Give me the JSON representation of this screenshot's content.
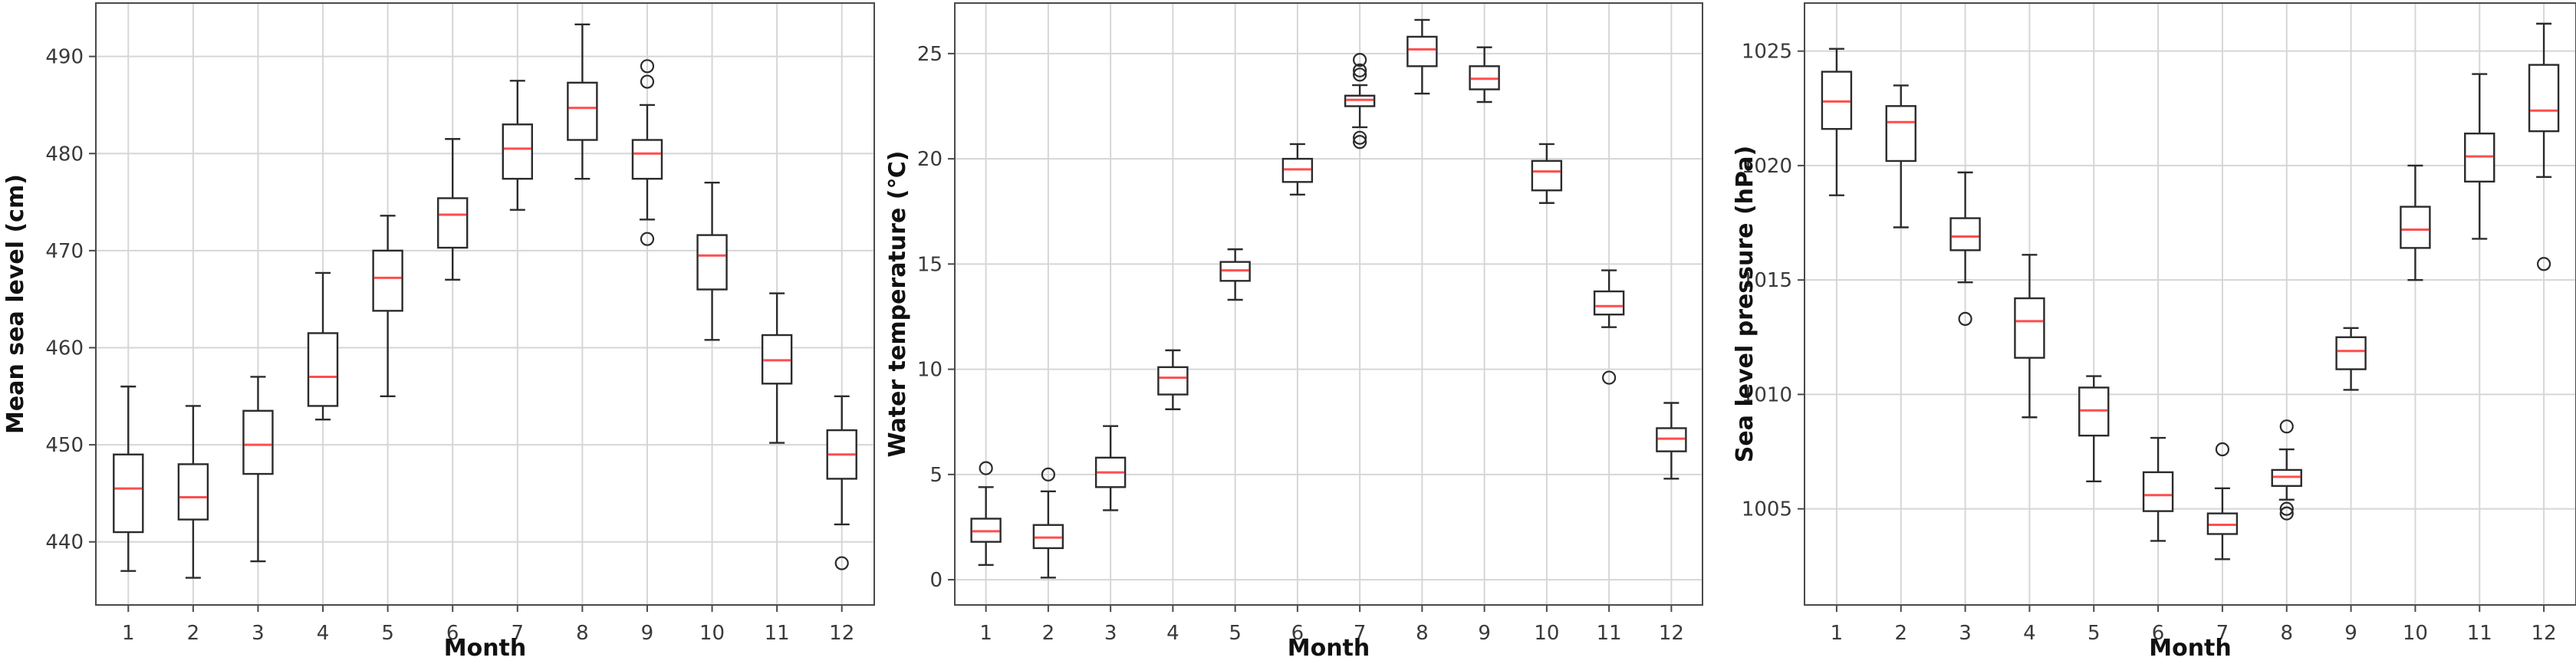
{
  "colors": {
    "median": "#ff4d4d",
    "box": "#2b2b2b",
    "grid": "#d6d6d6"
  },
  "chart_data": [
    {
      "type": "box",
      "xlabel": "Month",
      "ylabel": "Mean sea level (cm)",
      "ylim": [
        433.5,
        495.5
      ],
      "yticks": [
        440,
        450,
        460,
        470,
        480,
        490
      ],
      "grid": true,
      "categories": [
        "1",
        "2",
        "3",
        "4",
        "5",
        "6",
        "7",
        "8",
        "9",
        "10",
        "11",
        "12"
      ],
      "boxes": [
        {
          "whislo": 437.0,
          "q1": 441.0,
          "med": 445.5,
          "q3": 449.0,
          "whishi": 456.0,
          "fliers": []
        },
        {
          "whislo": 436.3,
          "q1": 442.3,
          "med": 444.6,
          "q3": 448.0,
          "whishi": 454.0,
          "fliers": []
        },
        {
          "whislo": 438.0,
          "q1": 447.0,
          "med": 450.0,
          "q3": 453.5,
          "whishi": 457.0,
          "fliers": []
        },
        {
          "whislo": 452.6,
          "q1": 454.0,
          "med": 457.0,
          "q3": 461.5,
          "whishi": 467.7,
          "fliers": []
        },
        {
          "whislo": 455.0,
          "q1": 463.8,
          "med": 467.2,
          "q3": 470.0,
          "whishi": 473.6,
          "fliers": []
        },
        {
          "whislo": 467.0,
          "q1": 470.3,
          "med": 473.7,
          "q3": 475.4,
          "whishi": 481.5,
          "fliers": []
        },
        {
          "whislo": 474.2,
          "q1": 477.4,
          "med": 480.5,
          "q3": 483.0,
          "whishi": 487.5,
          "fliers": []
        },
        {
          "whislo": 477.4,
          "q1": 481.4,
          "med": 484.7,
          "q3": 487.3,
          "whishi": 493.3,
          "fliers": []
        },
        {
          "whislo": 473.2,
          "q1": 477.4,
          "med": 480.0,
          "q3": 481.4,
          "whishi": 485.0,
          "fliers": [
            471.2,
            487.4,
            489.0
          ]
        },
        {
          "whislo": 460.8,
          "q1": 466.0,
          "med": 469.5,
          "q3": 471.6,
          "whishi": 477.0,
          "fliers": []
        },
        {
          "whislo": 450.2,
          "q1": 456.3,
          "med": 458.7,
          "q3": 461.3,
          "whishi": 465.6,
          "fliers": []
        },
        {
          "whislo": 441.8,
          "q1": 446.5,
          "med": 449.0,
          "q3": 451.5,
          "whishi": 455.0,
          "fliers": [
            437.8
          ]
        }
      ]
    },
    {
      "type": "box",
      "xlabel": "Month",
      "ylabel": "Water temperature (℃)",
      "ylim": [
        -1.2,
        27.4
      ],
      "yticks": [
        0,
        5,
        10,
        15,
        20,
        25
      ],
      "grid": true,
      "categories": [
        "1",
        "2",
        "3",
        "4",
        "5",
        "6",
        "7",
        "8",
        "9",
        "10",
        "11",
        "12"
      ],
      "boxes": [
        {
          "whislo": 0.7,
          "q1": 1.8,
          "med": 2.3,
          "q3": 2.9,
          "whishi": 4.4,
          "fliers": [
            5.3
          ]
        },
        {
          "whislo": 0.1,
          "q1": 1.5,
          "med": 2.0,
          "q3": 2.6,
          "whishi": 4.2,
          "fliers": [
            5.0
          ]
        },
        {
          "whislo": 3.3,
          "q1": 4.4,
          "med": 5.1,
          "q3": 5.8,
          "whishi": 7.3,
          "fliers": []
        },
        {
          "whislo": 8.1,
          "q1": 8.8,
          "med": 9.6,
          "q3": 10.1,
          "whishi": 10.9,
          "fliers": []
        },
        {
          "whislo": 13.3,
          "q1": 14.2,
          "med": 14.7,
          "q3": 15.1,
          "whishi": 15.7,
          "fliers": []
        },
        {
          "whislo": 18.3,
          "q1": 18.9,
          "med": 19.5,
          "q3": 20.0,
          "whishi": 20.7,
          "fliers": []
        },
        {
          "whislo": 21.5,
          "q1": 22.5,
          "med": 22.8,
          "q3": 23.0,
          "whishi": 23.5,
          "fliers": [
            20.8,
            21.0,
            24.0,
            24.2,
            24.7
          ]
        },
        {
          "whislo": 23.1,
          "q1": 24.4,
          "med": 25.2,
          "q3": 25.8,
          "whishi": 26.6,
          "fliers": []
        },
        {
          "whislo": 22.7,
          "q1": 23.3,
          "med": 23.8,
          "q3": 24.4,
          "whishi": 25.3,
          "fliers": []
        },
        {
          "whislo": 17.9,
          "q1": 18.5,
          "med": 19.4,
          "q3": 19.9,
          "whishi": 20.7,
          "fliers": []
        },
        {
          "whislo": 12.0,
          "q1": 12.6,
          "med": 13.0,
          "q3": 13.7,
          "whishi": 14.7,
          "fliers": [
            9.6
          ]
        },
        {
          "whislo": 4.8,
          "q1": 6.1,
          "med": 6.7,
          "q3": 7.2,
          "whishi": 8.4,
          "fliers": []
        }
      ]
    },
    {
      "type": "box",
      "xlabel": "Month",
      "ylabel": "Sea level pressure (hPa)",
      "ylim": [
        1000.8,
        1027.1
      ],
      "yticks": [
        1005,
        1010,
        1015,
        1020,
        1025
      ],
      "grid": true,
      "categories": [
        "1",
        "2",
        "3",
        "4",
        "5",
        "6",
        "7",
        "8",
        "9",
        "10",
        "11",
        "12"
      ],
      "boxes": [
        {
          "whislo": 1018.7,
          "q1": 1021.6,
          "med": 1022.8,
          "q3": 1024.1,
          "whishi": 1025.1,
          "fliers": []
        },
        {
          "whislo": 1017.3,
          "q1": 1020.2,
          "med": 1021.9,
          "q3": 1022.6,
          "whishi": 1023.5,
          "fliers": []
        },
        {
          "whislo": 1014.9,
          "q1": 1016.3,
          "med": 1016.9,
          "q3": 1017.7,
          "whishi": 1019.7,
          "fliers": [
            1013.3
          ]
        },
        {
          "whislo": 1009.0,
          "q1": 1011.6,
          "med": 1013.2,
          "q3": 1014.2,
          "whishi": 1016.1,
          "fliers": []
        },
        {
          "whislo": 1006.2,
          "q1": 1008.2,
          "med": 1009.3,
          "q3": 1010.3,
          "whishi": 1010.8,
          "fliers": []
        },
        {
          "whislo": 1003.6,
          "q1": 1004.9,
          "med": 1005.6,
          "q3": 1006.6,
          "whishi": 1008.1,
          "fliers": []
        },
        {
          "whislo": 1002.8,
          "q1": 1003.9,
          "med": 1004.3,
          "q3": 1004.8,
          "whishi": 1005.9,
          "fliers": [
            1007.6
          ]
        },
        {
          "whislo": 1005.4,
          "q1": 1006.0,
          "med": 1006.4,
          "q3": 1006.7,
          "whishi": 1007.6,
          "fliers": [
            1004.8,
            1005.0,
            1008.6
          ]
        },
        {
          "whislo": 1010.2,
          "q1": 1011.1,
          "med": 1011.9,
          "q3": 1012.5,
          "whishi": 1012.9,
          "fliers": []
        },
        {
          "whislo": 1015.0,
          "q1": 1016.4,
          "med": 1017.2,
          "q3": 1018.2,
          "whishi": 1020.0,
          "fliers": []
        },
        {
          "whislo": 1016.8,
          "q1": 1019.3,
          "med": 1020.4,
          "q3": 1021.4,
          "whishi": 1024.0,
          "fliers": []
        },
        {
          "whislo": 1019.5,
          "q1": 1021.5,
          "med": 1022.4,
          "q3": 1024.4,
          "whishi": 1026.2,
          "fliers": [
            1015.7
          ]
        }
      ]
    }
  ]
}
